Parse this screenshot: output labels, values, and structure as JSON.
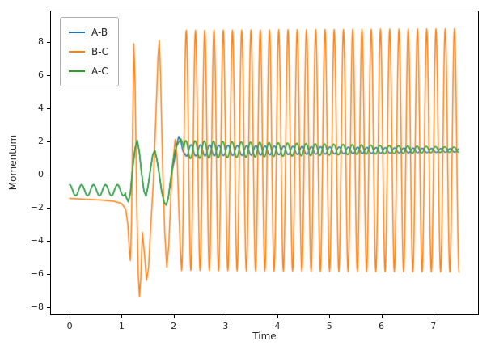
{
  "chart_data": {
    "type": "line",
    "title": "",
    "xlabel": "Time",
    "ylabel": "Momentum",
    "xlim": [
      -0.375,
      7.875
    ],
    "ylim": [
      -8.5,
      9.9
    ],
    "xticks": [
      0,
      1,
      2,
      3,
      4,
      5,
      6,
      7
    ],
    "yticks": [
      -8,
      -6,
      -4,
      -2,
      0,
      2,
      4,
      6,
      8
    ],
    "grid": false,
    "legend_position": "upper left",
    "series": [
      {
        "name": "A-B",
        "color": "#1f77b4",
        "segments": [
          {
            "type": "osc",
            "t0": 0.0,
            "t1": 1.08,
            "mean": -0.95,
            "amp0": 0.33,
            "amp1": 0.33,
            "period": 0.23,
            "phase": 1.5708
          },
          {
            "type": "points",
            "t": [
              1.08,
              1.13,
              1.17,
              1.21,
              1.26,
              1.3,
              1.34,
              1.38,
              1.43,
              1.47,
              1.51,
              1.56,
              1.6,
              1.64,
              1.68,
              1.73,
              1.77,
              1.82,
              1.86,
              1.9,
              1.94,
              1.98,
              2.02,
              2.06,
              2.1,
              2.14,
              2.18,
              2.22
            ],
            "y": [
              -1.3,
              -1.65,
              -1.1,
              0.3,
              1.6,
              2.05,
              1.4,
              0.2,
              -1.0,
              -1.3,
              -0.7,
              0.4,
              1.2,
              1.45,
              0.9,
              -0.1,
              -1.0,
              -1.7,
              -1.85,
              -1.4,
              -0.4,
              0.3,
              0.9,
              1.8,
              2.3,
              2.0,
              1.4,
              1.2
            ]
          },
          {
            "type": "osc",
            "t0": 2.22,
            "t1": 7.5,
            "mean": 1.45,
            "amp0": 0.35,
            "amp1": 0.1,
            "period": 0.178,
            "phase": -2.6
          }
        ]
      },
      {
        "name": "B-C",
        "color": "#ff7f0e",
        "segments": [
          {
            "type": "points",
            "t": [
              0.0,
              0.3,
              0.6,
              0.85,
              1.0,
              1.08,
              1.12,
              1.15,
              1.17,
              1.19,
              1.21,
              1.235,
              1.26,
              1.29,
              1.32,
              1.345,
              1.37,
              1.4,
              1.44,
              1.48,
              1.52,
              1.56,
              1.61,
              1.66,
              1.7,
              1.725,
              1.75,
              1.79,
              1.83,
              1.87,
              1.91,
              1.95,
              1.99,
              2.03,
              2.07,
              2.1,
              2.13,
              2.155
            ],
            "y": [
              -1.45,
              -1.5,
              -1.55,
              -1.62,
              -1.75,
              -2.1,
              -3.0,
              -4.6,
              -5.2,
              -3.0,
              2.0,
              7.9,
              5.5,
              -1.5,
              -6.0,
              -7.4,
              -6.2,
              -3.5,
              -4.8,
              -6.4,
              -5.6,
              -3.2,
              -0.5,
              3.5,
              7.0,
              8.1,
              6.0,
              0.5,
              -3.5,
              -5.6,
              -4.2,
              -1.2,
              0.8,
              2.1,
              1.0,
              -2.0,
              -4.5,
              -5.8
            ]
          },
          {
            "type": "osc",
            "t0": 2.155,
            "t1": 7.5,
            "mean": 1.45,
            "amp0": 7.25,
            "amp1": 7.35,
            "period": 0.178,
            "phase": -1.5708
          }
        ]
      },
      {
        "name": "A-C",
        "color": "#2ca02c",
        "segments": [
          {
            "type": "osc",
            "t0": 0.0,
            "t1": 1.08,
            "mean": -0.95,
            "amp0": 0.33,
            "amp1": 0.33,
            "period": 0.23,
            "phase": 1.5708
          },
          {
            "type": "points",
            "t": [
              1.08,
              1.13,
              1.17,
              1.21,
              1.26,
              1.3,
              1.34,
              1.38,
              1.43,
              1.47,
              1.51,
              1.56,
              1.6,
              1.64,
              1.68,
              1.73,
              1.77,
              1.82,
              1.86,
              1.9,
              1.94,
              1.98,
              2.02,
              2.06,
              2.1,
              2.14,
              2.18,
              2.2
            ],
            "y": [
              -1.3,
              -1.65,
              -1.1,
              0.3,
              1.6,
              2.05,
              1.4,
              0.2,
              -1.0,
              -1.3,
              -0.7,
              0.4,
              1.2,
              1.45,
              0.9,
              -0.1,
              -1.0,
              -1.7,
              -1.85,
              -1.4,
              -0.4,
              0.6,
              1.3,
              1.7,
              1.95,
              2.15,
              1.85,
              1.6
            ]
          },
          {
            "type": "osc",
            "t0": 2.2,
            "t1": 7.5,
            "mean": 1.5,
            "amp0": 0.55,
            "amp1": 0.15,
            "period": 0.178,
            "phase": 0.3
          }
        ]
      }
    ]
  },
  "legend": {
    "entries": [
      {
        "label": "A-B",
        "color": "#1f77b4"
      },
      {
        "label": "B-C",
        "color": "#ff7f0e"
      },
      {
        "label": "A-C",
        "color": "#2ca02c"
      }
    ]
  }
}
